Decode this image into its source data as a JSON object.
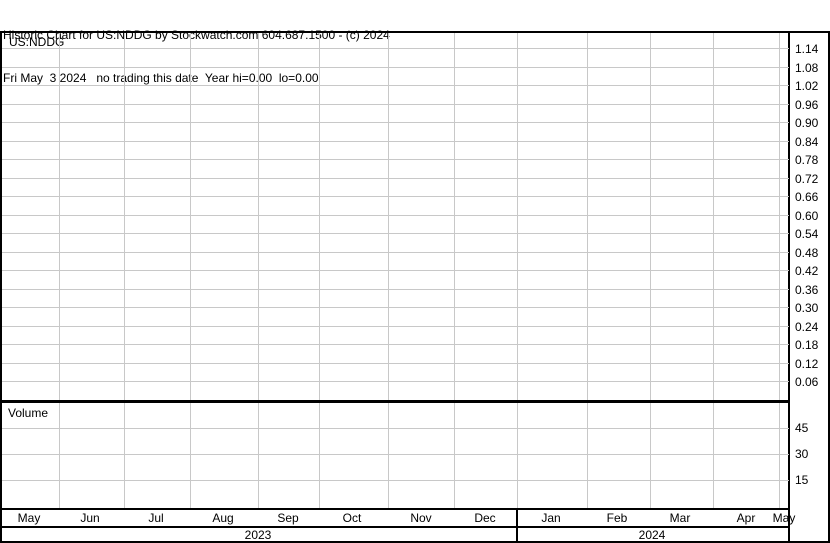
{
  "header": {
    "line1": "Historic Chart for US:NDDG by Stockwatch.com 604.687.1500 - (c) 2024",
    "line2": "Fri May  3 2024   no trading this date  Year hi=0.00  lo=0.00"
  },
  "chart_data": {
    "type": "line",
    "symbol": "US:NDDG",
    "price_axis": {
      "ticks": [
        "1.14",
        "1.08",
        "1.02",
        "0.96",
        "0.90",
        "0.84",
        "0.78",
        "0.72",
        "0.66",
        "0.60",
        "0.54",
        "0.48",
        "0.42",
        "0.36",
        "0.30",
        "0.24",
        "0.18",
        "0.12",
        "0.06"
      ]
    },
    "volume_pane": {
      "label": "Volume",
      "ticks": [
        "45",
        "30",
        "15"
      ]
    },
    "x_axis": {
      "months": [
        "May",
        "Jun",
        "Jul",
        "Aug",
        "Sep",
        "Oct",
        "Nov",
        "Dec",
        "Jan",
        "Feb",
        "Mar",
        "Apr",
        "May"
      ],
      "years": [
        "2023",
        "2024"
      ]
    },
    "series": [],
    "grid": true
  }
}
